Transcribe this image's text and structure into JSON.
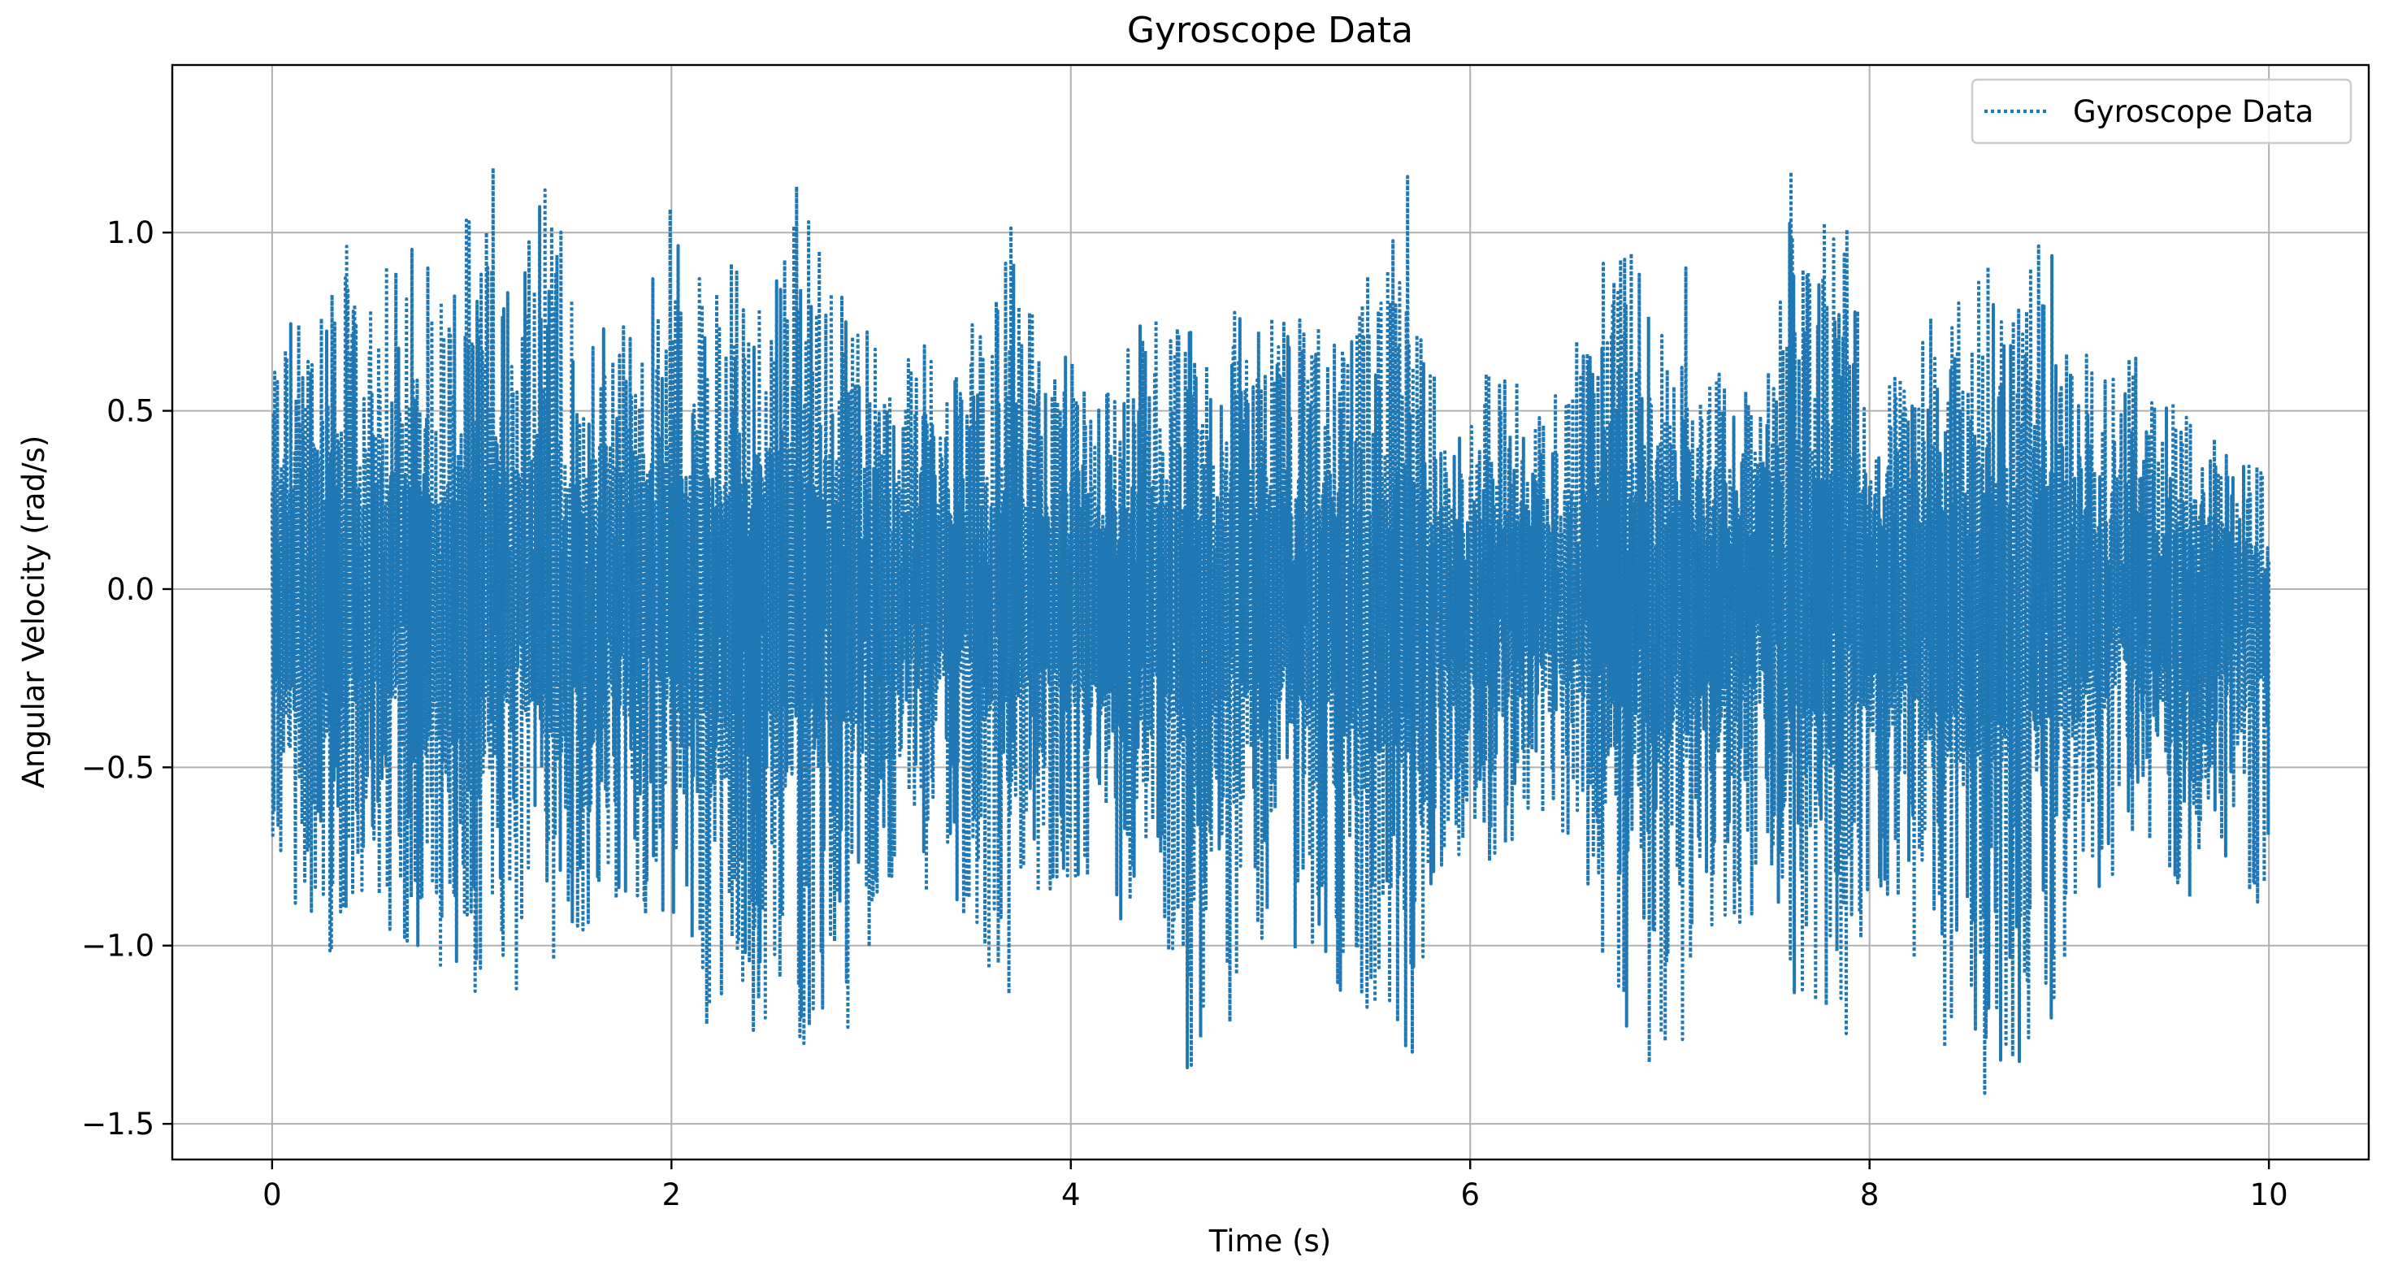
{
  "chart_data": {
    "type": "line",
    "title": "Gyroscope Data",
    "xlabel": "Time (s)",
    "ylabel": "Angular Velocity (rad/s)",
    "xlim": [
      -0.5,
      10.5
    ],
    "ylim": [
      -1.6,
      1.47
    ],
    "xticks": [
      0,
      2,
      4,
      6,
      8,
      10
    ],
    "xtick_labels": [
      "0",
      "2",
      "4",
      "6",
      "8",
      "10"
    ],
    "yticks": [
      -1.5,
      -1.0,
      -0.5,
      0.0,
      0.5,
      1.0
    ],
    "ytick_labels": [
      "−1.5",
      "−1.0",
      "−0.5",
      "0.0",
      "0.5",
      "1.0"
    ],
    "grid": true,
    "legend_position": "top-right",
    "series": [
      {
        "name": "Gyroscope Data",
        "line_style": "dotted",
        "color": "#1f77b4",
        "x_range": [
          0,
          10
        ],
        "envelope": {
          "t": [
            0,
            0.1,
            0.2,
            0.3,
            0.4,
            0.5,
            0.6,
            0.7,
            0.8,
            0.9,
            1.0,
            1.1,
            1.2,
            1.3,
            1.4,
            1.5,
            1.6,
            1.7,
            1.8,
            1.9,
            2.0,
            2.1,
            2.2,
            2.3,
            2.4,
            2.5,
            2.6,
            2.7,
            2.8,
            2.9,
            3.0,
            3.1,
            3.2,
            3.3,
            3.4,
            3.5,
            3.6,
            3.7,
            3.8,
            3.9,
            4.0,
            4.1,
            4.2,
            4.3,
            4.4,
            4.5,
            4.6,
            4.7,
            4.8,
            4.9,
            5.0,
            5.1,
            5.2,
            5.3,
            5.4,
            5.5,
            5.6,
            5.7,
            5.8,
            5.9,
            6.0,
            6.1,
            6.2,
            6.3,
            6.4,
            6.5,
            6.6,
            6.7,
            6.8,
            6.9,
            7.0,
            7.1,
            7.2,
            7.3,
            7.4,
            7.5,
            7.6,
            7.7,
            7.8,
            7.9,
            8.0,
            8.1,
            8.2,
            8.3,
            8.4,
            8.5,
            8.6,
            8.7,
            8.8,
            8.9,
            9.0,
            9.1,
            9.2,
            9.3,
            9.4,
            9.5,
            9.6,
            9.7,
            9.8,
            9.9,
            10.0
          ],
          "upper": [
            0.75,
            0.8,
            0.75,
            1.17,
            0.9,
            0.85,
            0.95,
            1.12,
            0.95,
            0.9,
            1.1,
            1.25,
            0.95,
            1.15,
            1.33,
            0.85,
            0.75,
            0.8,
            0.75,
            0.9,
            1.12,
            0.95,
            0.8,
            1.05,
            0.85,
            0.95,
            1.22,
            1.05,
            0.9,
            0.85,
            0.75,
            0.62,
            0.65,
            0.75,
            0.7,
            0.75,
            0.7,
            1.1,
            0.8,
            0.7,
            0.65,
            0.7,
            0.6,
            0.75,
            0.8,
            0.78,
            0.75,
            0.7,
            0.8,
            0.72,
            0.85,
            0.78,
            0.75,
            0.8,
            0.78,
            0.9,
            1.0,
            1.22,
            0.6,
            0.62,
            0.6,
            0.62,
            0.65,
            0.58,
            0.58,
            0.68,
            0.85,
            1.08,
            1.0,
            0.75,
            0.78,
            0.95,
            0.72,
            0.62,
            0.55,
            0.65,
            1.25,
            1.32,
            1.1,
            1.0,
            0.55,
            0.62,
            0.72,
            0.75,
            0.9,
            0.85,
            0.95,
            0.78,
            1.0,
            0.95,
            0.85,
            0.65,
            0.6,
            0.68,
            0.62,
            0.55,
            0.48,
            0.42,
            0.45,
            0.4,
            0.32
          ],
          "lower": [
            -0.68,
            -1.1,
            -0.9,
            -1.05,
            -0.9,
            -1.0,
            -1.15,
            -1.0,
            -1.15,
            -1.0,
            -1.2,
            -1.15,
            -1.2,
            -1.25,
            -1.1,
            -1.05,
            -0.95,
            -1.05,
            -1.0,
            -1.05,
            -0.95,
            -1.15,
            -1.25,
            -1.35,
            -1.4,
            -1.3,
            -1.25,
            -1.3,
            -1.2,
            -1.35,
            -1.05,
            -0.95,
            -0.9,
            -1.0,
            -0.85,
            -0.95,
            -1.1,
            -1.2,
            -0.9,
            -0.85,
            -0.8,
            -0.95,
            -1.0,
            -0.9,
            -0.85,
            -1.15,
            -1.4,
            -1.2,
            -1.25,
            -1.1,
            -0.95,
            -1.0,
            -1.05,
            -1.1,
            -1.25,
            -1.3,
            -1.2,
            -1.35,
            -0.9,
            -0.75,
            -0.75,
            -0.8,
            -0.75,
            -0.7,
            -0.65,
            -0.7,
            -0.9,
            -1.2,
            -1.35,
            -1.4,
            -1.47,
            -1.2,
            -1.0,
            -1.1,
            -0.95,
            -0.85,
            -1.1,
            -1.3,
            -1.25,
            -1.25,
            -0.85,
            -0.9,
            -1.05,
            -1.25,
            -1.3,
            -1.35,
            -1.45,
            -1.45,
            -1.4,
            -1.25,
            -1.0,
            -0.9,
            -0.85,
            -0.75,
            -0.7,
            -0.85,
            -0.9,
            -0.8,
            -0.75,
            -0.95,
            -0.85
          ]
        }
      }
    ]
  }
}
